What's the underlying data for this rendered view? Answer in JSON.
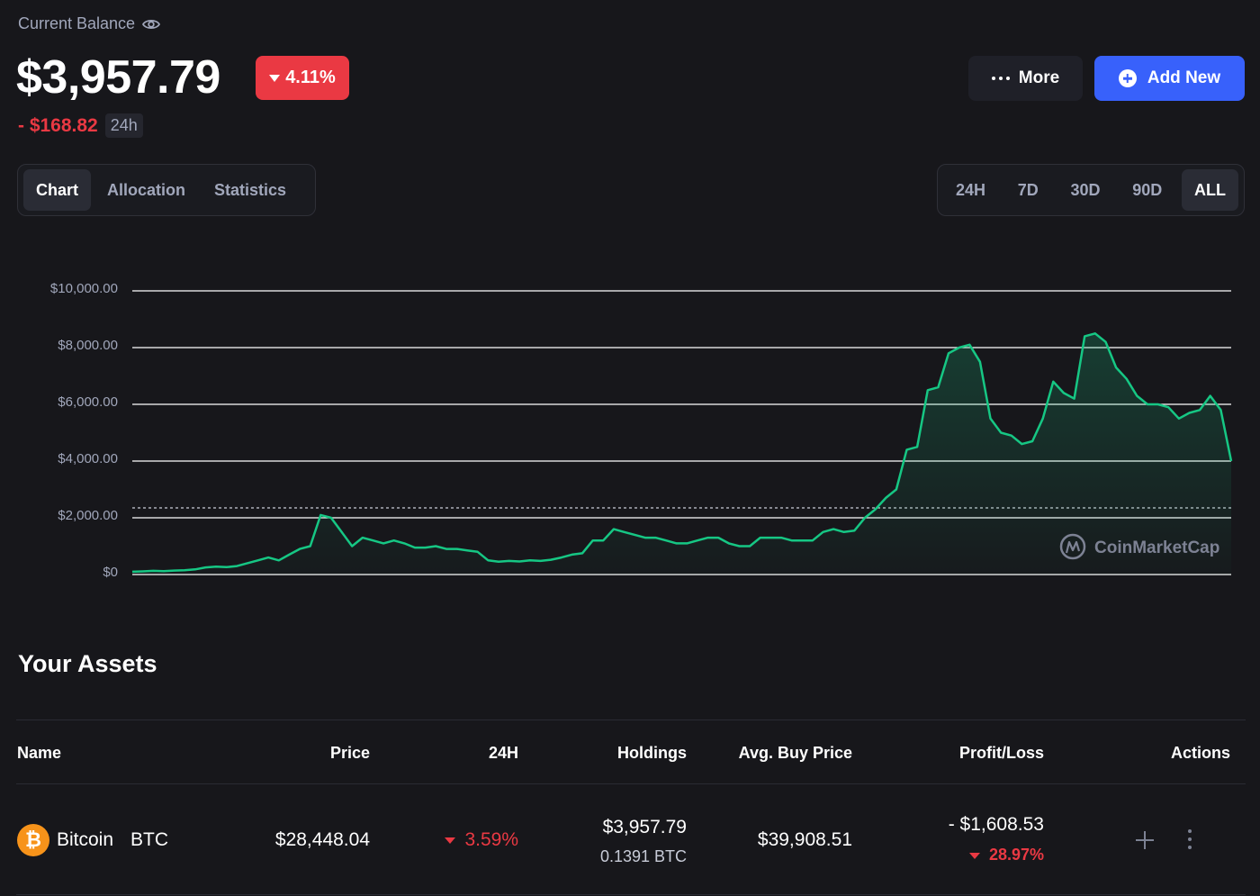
{
  "header": {
    "balance_label": "Current Balance",
    "balance_value": "$3,957.79",
    "change_pct": "4.11%",
    "change_amount": "- $168.82",
    "change_period": "24h"
  },
  "actions": {
    "more_label": "More",
    "add_label": "Add New"
  },
  "view_tabs": [
    {
      "label": "Chart",
      "active": true
    },
    {
      "label": "Allocation",
      "active": false
    },
    {
      "label": "Statistics",
      "active": false
    }
  ],
  "range_tabs": [
    {
      "label": "24H",
      "active": false
    },
    {
      "label": "7D",
      "active": false
    },
    {
      "label": "30D",
      "active": false
    },
    {
      "label": "90D",
      "active": false
    },
    {
      "label": "ALL",
      "active": true
    }
  ],
  "colors": {
    "background": "#17171b",
    "accent": "#3861fb",
    "negative": "#ea3943",
    "line": "#16c784"
  },
  "chart_data": {
    "type": "area",
    "ylim": [
      0,
      10000
    ],
    "ytick_labels": [
      "$10,000.00",
      "$8,000.00",
      "$6,000.00",
      "$4,000.00",
      "$2,000.00",
      "$0"
    ],
    "ytick_values": [
      10000,
      8000,
      6000,
      4000,
      2000,
      0
    ],
    "reference_line": 2350,
    "grid": true,
    "watermark": "CoinMarketCap",
    "series": [
      {
        "values": [
          100,
          110,
          130,
          120,
          140,
          150,
          180,
          250,
          280,
          260,
          300,
          400,
          500,
          600,
          500,
          700,
          900,
          1000,
          2100,
          2000,
          1500,
          1000,
          1300,
          1200,
          1100,
          1200,
          1100,
          950,
          950,
          1000,
          900,
          900,
          850,
          800,
          500,
          450,
          480,
          460,
          500,
          480,
          520,
          600,
          700,
          750,
          1200,
          1200,
          1600,
          1500,
          1400,
          1300,
          1300,
          1200,
          1100,
          1100,
          1200,
          1300,
          1300,
          1100,
          1000,
          1000,
          1300,
          1300,
          1300,
          1200,
          1200,
          1200,
          1500,
          1600,
          1500,
          1550,
          2000,
          2300,
          2700,
          3000,
          4400,
          4500,
          6500,
          6600,
          7800,
          8000,
          8100,
          7500,
          5500,
          5000,
          4900,
          4600,
          4700,
          5500,
          6800,
          6400,
          6200,
          8400,
          8500,
          8200,
          7300,
          6900,
          6300,
          6000,
          6000,
          5900,
          5500,
          5700,
          5800,
          6300,
          5800,
          4000
        ]
      }
    ]
  },
  "assets": {
    "title": "Your Assets",
    "columns": [
      "Name",
      "Price",
      "24H",
      "Holdings",
      "Avg. Buy Price",
      "Profit/Loss",
      "Actions"
    ],
    "rows": [
      {
        "icon": "bitcoin-icon",
        "name": "Bitcoin",
        "symbol": "BTC",
        "price": "$28,448.04",
        "change_24h": "3.59%",
        "holdings_value": "$3,957.79",
        "holdings_amount": "0.1391 BTC",
        "avg_buy_price": "$39,908.51",
        "profit_loss": "- $1,608.53",
        "profit_loss_pct": "28.97%"
      }
    ]
  }
}
